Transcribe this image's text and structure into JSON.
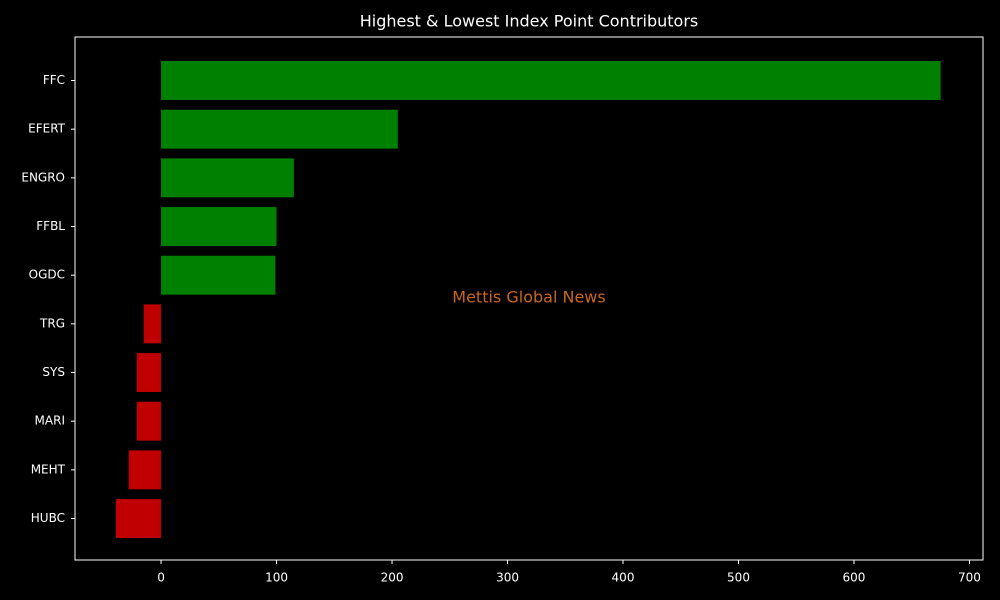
{
  "chart_data": {
    "type": "barh",
    "title": "Highest & Lowest Index Point Contributors",
    "categories": [
      "FFC",
      "EFERT",
      "ENGRO",
      "FFBL",
      "OGDC",
      "TRG",
      "SYS",
      "MARI",
      "MEHT",
      "HUBC"
    ],
    "values": [
      675,
      205,
      115,
      100,
      99,
      -15,
      -21,
      -21,
      -28,
      -39
    ],
    "colors": [
      "#008000",
      "#008000",
      "#008000",
      "#008000",
      "#008000",
      "#c00000",
      "#c00000",
      "#c00000",
      "#c00000",
      "#c00000"
    ],
    "xlim": [
      -74.5,
      711.7
    ],
    "xticks": [
      0,
      100,
      200,
      300,
      400,
      500,
      600,
      700
    ],
    "annotation": "Mettis Global News",
    "annotation_color": "#c8661e"
  }
}
